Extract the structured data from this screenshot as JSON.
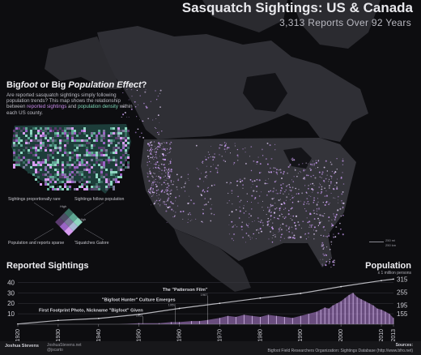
{
  "header": {
    "title": "Sasquatch Sightings: US & Canada",
    "subtitle": "3,313 Reports Over 92 Years"
  },
  "sidebar": {
    "title_part1": "Big",
    "title_italic1": "foot",
    "title_part2": " or Big ",
    "title_italic2": "Population Effect",
    "title_part3": "?",
    "text_a": "Are reported sasquatch sightings simply following population trends? This map shows the relationship between ",
    "text_hl1": "reported sightings",
    "text_b": " and ",
    "text_hl2": "population density",
    "text_c": " within each US county.",
    "legend": {
      "top_left": "Sightings proportionally rare",
      "top_right": "Sightings follow population",
      "bottom_left": "Population and reports sparse",
      "bottom_right": "'Squatches Galore",
      "high_top": "High",
      "high_right": "High"
    }
  },
  "map": {
    "scale_miles": "250 mi",
    "scale_km": "250 km"
  },
  "chart": {
    "title": "Reported Sightings",
    "pop_title": "Population",
    "pop_subtitle": "x 1 million persons",
    "colors": {
      "sightings": "#b784d9",
      "population": "#e0e0e6",
      "annotation": "#d8d8de"
    }
  },
  "chart_data": {
    "type": "area",
    "x_range": [
      1920,
      2013
    ],
    "x_ticks": [
      "1920",
      "1930",
      "1940",
      "1950",
      "1960",
      "1970",
      "1980",
      "1990",
      "2000",
      "2010",
      "2013"
    ],
    "y_left_ticks": [
      10,
      20,
      30,
      40
    ],
    "y_left_range": [
      0,
      45
    ],
    "y_right_ticks": [
      155,
      195,
      255,
      315
    ],
    "y_right_range": [
      105,
      325
    ],
    "annotations": [
      {
        "text": "The \"Patterson Film\"",
        "year": "1967",
        "x": 1967,
        "y": 32
      },
      {
        "text": "\"Bigfoot Hunter\" Culture Emerges",
        "year": "1959",
        "x": 1959,
        "y": 22
      },
      {
        "text": "First Footprint Photo, Nickname \"Bigfoot\" Given",
        "year": "1951",
        "x": 1951,
        "y": 12
      }
    ],
    "sightings_series": {
      "name": "Reported Sightings",
      "x": [
        1920,
        1925,
        1930,
        1935,
        1940,
        1945,
        1950,
        1955,
        1958,
        1960,
        1963,
        1965,
        1967,
        1970,
        1972,
        1974,
        1976,
        1978,
        1980,
        1982,
        1984,
        1986,
        1988,
        1990,
        1992,
        1994,
        1995,
        1996,
        1997,
        1998,
        1999,
        2000,
        2001,
        2002,
        2003,
        2004,
        2005,
        2006,
        2007,
        2008,
        2009,
        2010,
        2011,
        2012,
        2013
      ],
      "values": [
        0,
        0,
        0,
        0,
        0,
        0,
        1,
        1,
        2,
        2,
        3,
        3,
        4,
        6,
        8,
        7,
        9,
        8,
        7,
        9,
        8,
        7,
        6,
        8,
        10,
        12,
        14,
        16,
        15,
        18,
        20,
        22,
        25,
        28,
        30,
        26,
        24,
        22,
        20,
        18,
        15,
        14,
        12,
        10,
        6
      ]
    },
    "population_series": {
      "name": "Population",
      "x": [
        1920,
        1930,
        1940,
        1950,
        1960,
        1970,
        1980,
        1990,
        2000,
        2010,
        2013
      ],
      "values": [
        106,
        123,
        132,
        151,
        179,
        203,
        227,
        249,
        281,
        309,
        316
      ]
    }
  },
  "footer": {
    "author": "Joshua Stevens",
    "link1": "JoshuaStevens.net",
    "link2": "@jscarto",
    "sources_label": "Sources:",
    "sources_text": "Bigfoot Field Researchers Organization: Sightings Database (http://www.bfro.net)"
  }
}
